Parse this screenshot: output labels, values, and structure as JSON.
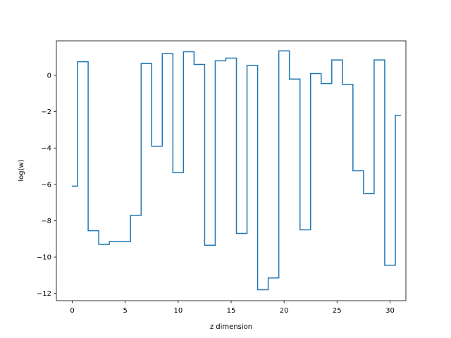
{
  "chart_data": {
    "type": "line",
    "drawstyle": "steps-mid",
    "title": "",
    "xlabel": "z dimension",
    "ylabel": "log(w)",
    "xlim": [
      -1.5,
      31.5
    ],
    "ylim": [
      -12.4,
      1.9
    ],
    "xticks": [
      0,
      5,
      10,
      15,
      20,
      25,
      30
    ],
    "yticks": [
      -12,
      -10,
      -8,
      -6,
      -4,
      -2,
      0
    ],
    "grid": false,
    "series": [
      {
        "color": "#1f77b4",
        "x": [
          0,
          1,
          2,
          3,
          4,
          5,
          6,
          7,
          8,
          9,
          10,
          11,
          12,
          13,
          14,
          15,
          16,
          17,
          18,
          19,
          20,
          21,
          22,
          23,
          24,
          25,
          26,
          27,
          28,
          29,
          30,
          31
        ],
        "values": [
          -6.1,
          0.75,
          -8.55,
          -9.3,
          -9.15,
          -9.15,
          -7.7,
          0.65,
          -3.9,
          1.2,
          -5.35,
          1.3,
          0.6,
          -9.35,
          0.8,
          0.95,
          -8.7,
          0.55,
          -11.8,
          -11.15,
          1.35,
          -0.2,
          -8.5,
          0.1,
          -0.45,
          0.85,
          -0.5,
          -5.25,
          -6.5,
          0.85,
          -10.45,
          -2.2
        ]
      }
    ]
  }
}
